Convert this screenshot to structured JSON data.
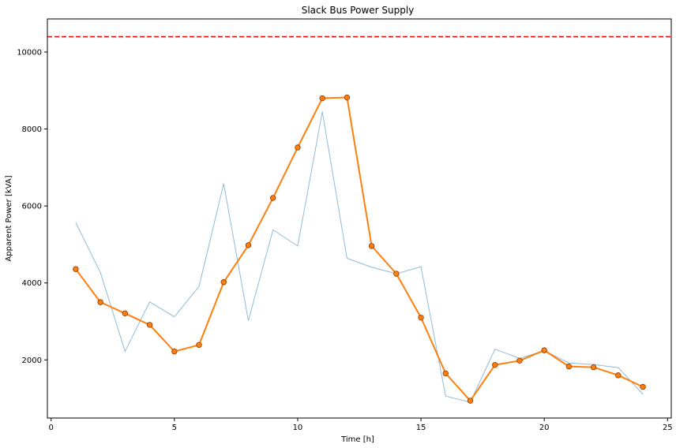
{
  "chart_data": {
    "type": "line",
    "title": "Slack Bus Power Supply",
    "xlabel": "Time [h]",
    "ylabel": "Apparent Power [kVA]",
    "xlim": [
      -0.15,
      25.15
    ],
    "ylim": [
      490,
      10860
    ],
    "xticks": [
      0,
      5,
      10,
      15,
      20,
      25
    ],
    "yticks": [
      2000,
      4000,
      6000,
      8000,
      10000
    ],
    "grid": false,
    "legend": "none",
    "reference_line": {
      "y": 10400,
      "color": "#ff0000",
      "style": "dashed"
    },
    "series": [
      {
        "style": "thin-line",
        "color": "#1f77b4",
        "opacity": 0.5,
        "x": [
          1,
          2,
          3,
          4,
          5,
          6,
          7,
          8,
          9,
          10,
          11,
          12,
          13,
          14,
          15,
          16,
          17,
          18,
          19,
          20,
          21,
          22,
          23,
          24
        ],
        "y": [
          5570,
          4270,
          2220,
          3510,
          3120,
          3910,
          6580,
          3020,
          5380,
          4960,
          8450,
          4640,
          4410,
          4240,
          4420,
          1060,
          900,
          2280,
          2040,
          2240,
          1920,
          1880,
          1800,
          1110
        ]
      },
      {
        "style": "line-markers",
        "color": "#ff7f0e",
        "marker_edge": "#8b3a00",
        "x": [
          1,
          2,
          3,
          4,
          5,
          6,
          7,
          8,
          9,
          10,
          11,
          12,
          13,
          14,
          15,
          16,
          17,
          18,
          19,
          20,
          21,
          22,
          23,
          24
        ],
        "y": [
          4360,
          3500,
          3210,
          2910,
          2220,
          2390,
          4020,
          4980,
          6210,
          7520,
          8800,
          8820,
          4960,
          4240,
          3100,
          1650,
          940,
          1870,
          1980,
          2250,
          1830,
          1810,
          1600,
          1300
        ]
      }
    ]
  }
}
